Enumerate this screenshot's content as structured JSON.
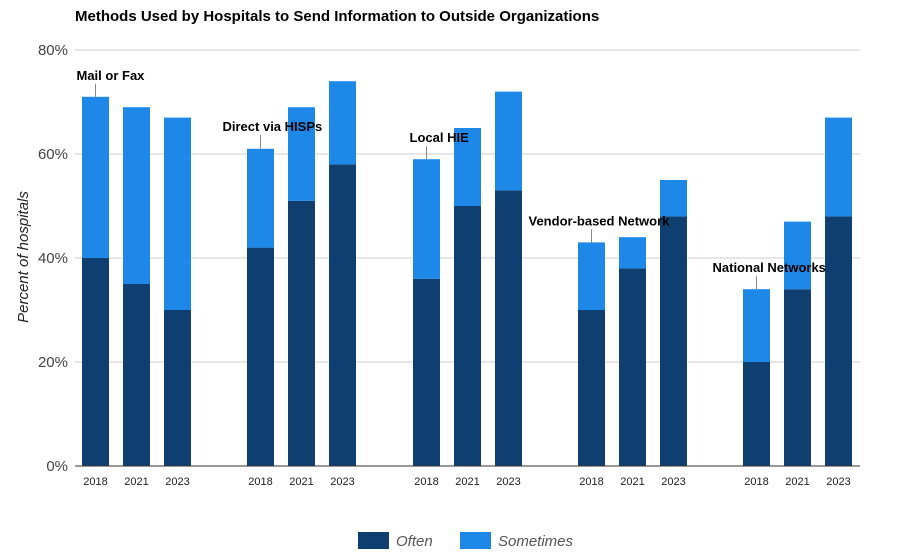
{
  "chart_data": {
    "type": "bar",
    "stacked": true,
    "title": "Methods Used by Hospitals to Send Information to Outside Organizations",
    "ylabel": "Percent of hospitals",
    "xlabel": "",
    "ylim": [
      0,
      80
    ],
    "yticks": [
      "0%",
      "20%",
      "40%",
      "60%",
      "80%"
    ],
    "ytick_values": [
      0,
      20,
      40,
      60,
      80
    ],
    "grid": true,
    "legend_position": "bottom",
    "years": [
      "2018",
      "2021",
      "2023"
    ],
    "groups": [
      {
        "label": "Mail or Fax",
        "often": [
          40,
          35,
          30
        ],
        "sometimes": [
          31,
          34,
          37
        ]
      },
      {
        "label": "Direct via HISPs",
        "often": [
          42,
          51,
          58
        ],
        "sometimes": [
          19,
          18,
          16
        ]
      },
      {
        "label": "Local HIE",
        "often": [
          36,
          50,
          53
        ],
        "sometimes": [
          23,
          15,
          19
        ]
      },
      {
        "label": "Vendor-based Network",
        "often": [
          30,
          38,
          48
        ],
        "sometimes": [
          13,
          6,
          7
        ]
      },
      {
        "label": "National Networks",
        "often": [
          20,
          34,
          48
        ],
        "sometimes": [
          14,
          13,
          19
        ]
      }
    ],
    "series": [
      {
        "name": "Often",
        "color": "#0f3f70"
      },
      {
        "name": "Sometimes",
        "color": "#1e88e8"
      }
    ]
  }
}
